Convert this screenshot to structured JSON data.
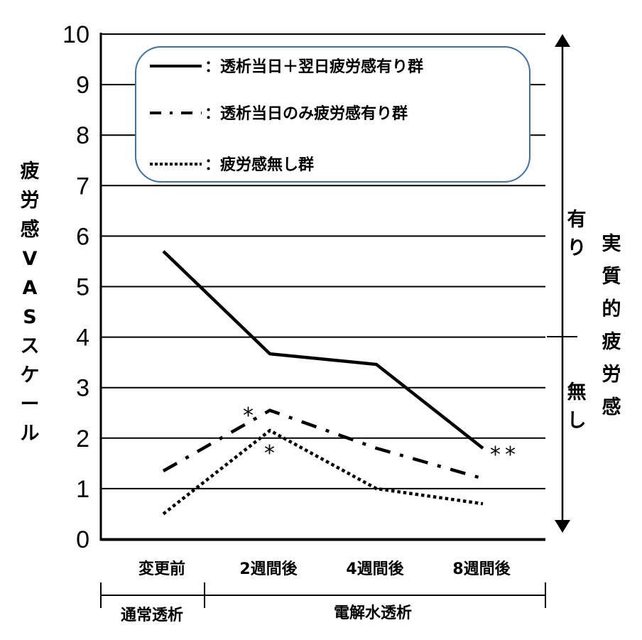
{
  "chart_data": {
    "type": "line",
    "title": "",
    "ylabel": "疲労感VASスケール",
    "ylabel_chars": [
      "疲",
      "労",
      "感",
      "V",
      "A",
      "S",
      "ス",
      "ケ",
      "ー",
      "ル"
    ],
    "ylim": [
      0,
      10
    ],
    "yticks": [
      "0",
      "1",
      "2",
      "3",
      "4",
      "5",
      "6",
      "7",
      "8",
      "9",
      "10"
    ],
    "grid": true,
    "categories": [
      "変更前",
      "2週間後",
      "4週間後",
      "8週間後"
    ],
    "series": [
      {
        "name": "透析当日＋翌日疲労感有り群",
        "style": "solid",
        "values": [
          5.7,
          3.67,
          3.46,
          1.8
        ]
      },
      {
        "name": "透析当日のみ疲労感有り群",
        "style": "dash-dot",
        "values": [
          1.35,
          2.55,
          1.8,
          1.2
        ]
      },
      {
        "name": "疲労感無し群",
        "style": "dotted",
        "values": [
          0.5,
          2.15,
          1.0,
          0.7
        ]
      }
    ],
    "legend_position": "top-inside",
    "annotations": [
      {
        "text": "*",
        "near": "透析当日のみ疲労感有り群 @ 2週間後"
      },
      {
        "text": "*",
        "near": "疲労感無し群 @ 2週間後"
      },
      {
        "text": "**",
        "near": "透析当日＋翌日疲労感有り群 @ 8週間後"
      }
    ],
    "group_labels": [
      {
        "label": "通常透析",
        "covers": [
          "変更前"
        ]
      },
      {
        "label": "電解水透析",
        "covers": [
          "2週間後",
          "4週間後",
          "8週間後"
        ]
      }
    ],
    "right_axis": {
      "title": "実質的疲労感",
      "title_chars": [
        "実",
        "質",
        "的",
        "疲",
        "労",
        "感"
      ],
      "upper_label": "有り",
      "upper_chars": [
        "有",
        "り"
      ],
      "lower_label": "無し",
      "lower_chars": [
        "無",
        "し"
      ],
      "threshold": 4
    }
  },
  "legend": {
    "items": [
      {
        "label": "：透析当日＋翌日疲労感有り群"
      },
      {
        "label": "：透析当日のみ疲労感有り群"
      },
      {
        "label": "：疲労感無し群"
      }
    ],
    "border_color": "#41719c"
  },
  "annotations_text": {
    "star1": "*",
    "star2": "*",
    "star3": "**"
  },
  "colors": {
    "line": "#000000",
    "legend_border": "#41719c",
    "background": "#ffffff"
  }
}
